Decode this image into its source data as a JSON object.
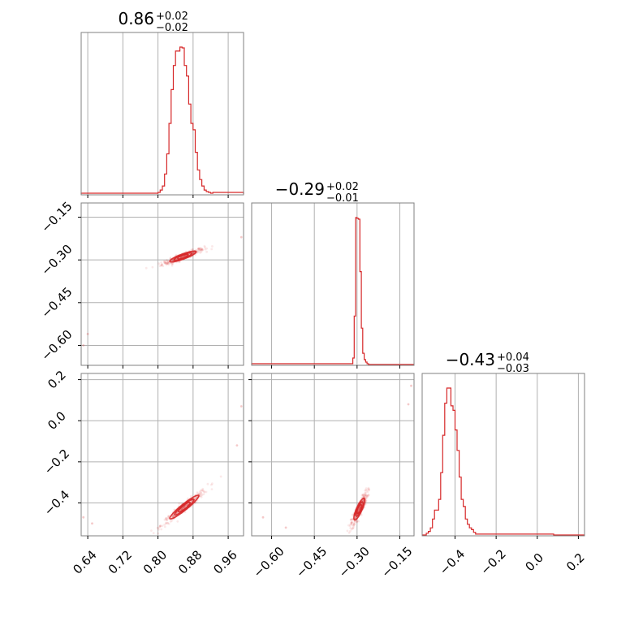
{
  "chart_data": {
    "type": "corner",
    "color": "#d62728",
    "grid": true,
    "parameters": [
      {
        "range": [
          0.625,
          0.995
        ],
        "ticks": [
          0.64,
          0.72,
          0.8,
          0.88,
          0.96
        ],
        "tick_labels": [
          "0.64",
          "0.72",
          "0.80",
          "0.88",
          "0.96"
        ],
        "title": "0.86",
        "title_plus": "+0.02",
        "title_minus": "−0.02"
      },
      {
        "range": [
          -0.67,
          -0.1
        ],
        "ticks": [
          -0.6,
          -0.45,
          -0.3,
          -0.15
        ],
        "tick_labels": [
          "−0.60",
          "−0.45",
          "−0.30",
          "−0.15"
        ],
        "title": "−0.29",
        "title_plus": "+0.02",
        "title_minus": "−0.01"
      },
      {
        "range": [
          -0.56,
          0.23
        ],
        "ticks": [
          -0.4,
          -0.2,
          0.0,
          0.2
        ],
        "tick_labels": [
          "−0.4",
          "−0.2",
          "0.0",
          "0.2"
        ],
        "title": "−0.43",
        "title_plus": "+0.04",
        "title_minus": "−0.03"
      }
    ],
    "histograms": [
      {
        "param": 0,
        "bin_edges": [
          0.625,
          0.8,
          0.805,
          0.81,
          0.815,
          0.82,
          0.825,
          0.83,
          0.835,
          0.84,
          0.845,
          0.85,
          0.855,
          0.86,
          0.865,
          0.87,
          0.875,
          0.88,
          0.885,
          0.89,
          0.895,
          0.9,
          0.905,
          0.91,
          0.915,
          0.92,
          0.925,
          0.995
        ],
        "counts": [
          1,
          2,
          5,
          10,
          25,
          50,
          88,
          130,
          160,
          178,
          178,
          183,
          182,
          160,
          147,
          112,
          88,
          80,
          52,
          30,
          18,
          10,
          5,
          3,
          2,
          1,
          2
        ]
      },
      {
        "param": 1,
        "bin_edges": [
          -0.67,
          -0.315,
          -0.31,
          -0.305,
          -0.3,
          -0.295,
          -0.29,
          -0.285,
          -0.28,
          -0.275,
          -0.27,
          -0.265,
          -0.26,
          -0.1
        ],
        "counts": [
          1,
          8,
          60,
          182,
          181,
          180,
          115,
          45,
          14,
          6,
          3,
          1,
          0
        ]
      },
      {
        "param": 2,
        "bin_edges": [
          -0.56,
          -0.54,
          -0.53,
          -0.52,
          -0.51,
          -0.5,
          -0.49,
          -0.48,
          -0.47,
          -0.46,
          -0.45,
          -0.44,
          -0.43,
          -0.42,
          -0.41,
          -0.4,
          -0.39,
          -0.38,
          -0.37,
          -0.36,
          -0.35,
          -0.34,
          -0.33,
          -0.32,
          -0.31,
          -0.3,
          -0.26,
          0.06,
          0.08,
          0.23
        ],
        "counts": [
          0,
          2,
          4,
          8,
          18,
          28,
          28,
          40,
          70,
          112,
          148,
          165,
          165,
          145,
          140,
          118,
          95,
          65,
          40,
          32,
          18,
          12,
          8,
          6,
          3,
          1,
          1,
          1,
          0
        ]
      }
    ],
    "pair_panels": [
      {
        "x_param": 0,
        "y_param": 1,
        "center": [
          0.857,
          -0.288
        ],
        "sd_x": 0.02,
        "sd_y": 0.012,
        "correlation": 0.93,
        "outliers": [
          [
            0.64,
            -0.56
          ],
          [
            0.63,
            -0.6
          ],
          [
            0.99,
            -0.22
          ]
        ]
      },
      {
        "x_param": 0,
        "y_param": 2,
        "center": [
          0.86,
          -0.42
        ],
        "sd_x": 0.022,
        "sd_y": 0.038,
        "correlation": 0.97,
        "outliers": [
          [
            0.63,
            -0.47
          ],
          [
            0.65,
            -0.5
          ],
          [
            0.99,
            0.07
          ],
          [
            0.98,
            -0.12
          ]
        ]
      },
      {
        "x_param": 1,
        "y_param": 2,
        "center": [
          -0.292,
          -0.43
        ],
        "sd_x": 0.012,
        "sd_y": 0.035,
        "correlation": 0.9,
        "outliers": [
          [
            -0.63,
            -0.47
          ],
          [
            -0.55,
            -0.52
          ],
          [
            -0.11,
            0.17
          ],
          [
            -0.12,
            0.08
          ]
        ]
      }
    ]
  }
}
